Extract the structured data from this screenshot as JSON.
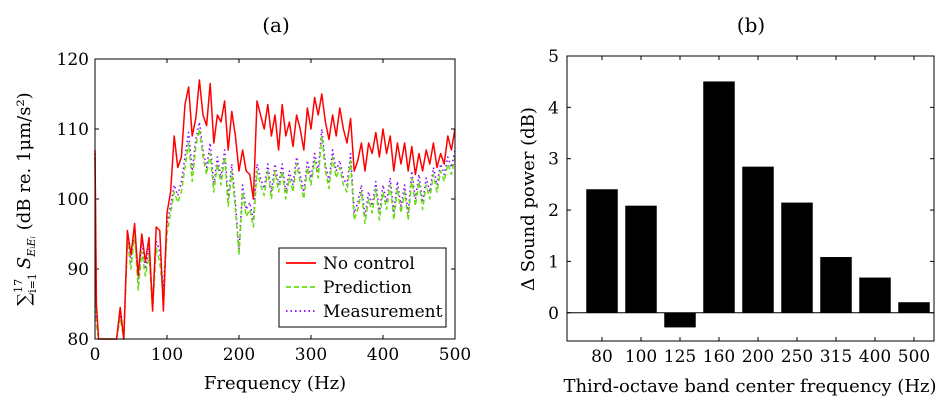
{
  "chart_data": [
    {
      "panel_label": "(a)",
      "type": "line",
      "xlabel": "Frequency (Hz)",
      "ylabel": "∑ S (dB re. 1μm/s²)",
      "ylabel_parts": {
        "sum": "∑",
        "sum_sup": "17",
        "sum_sub": "i=1",
        "symbol": "S",
        "symbol_sub": "EᵢEᵢ",
        "unit": "(dB re. 1μm/s²)"
      },
      "xlim": [
        0,
        500
      ],
      "ylim": [
        80,
        120
      ],
      "xticks": [
        0,
        100,
        200,
        300,
        400,
        500
      ],
      "yticks": [
        80,
        90,
        100,
        110,
        120
      ],
      "legend_position": "lower-right",
      "series": [
        {
          "name": "No control",
          "color": "#ff0000",
          "style": "solid",
          "x": [
            0,
            2,
            5,
            10,
            20,
            30,
            35,
            40,
            45,
            50,
            55,
            60,
            65,
            70,
            75,
            80,
            85,
            90,
            95,
            100,
            105,
            110,
            115,
            120,
            125,
            130,
            135,
            140,
            145,
            150,
            155,
            160,
            165,
            170,
            175,
            180,
            185,
            190,
            195,
            200,
            205,
            210,
            215,
            220,
            225,
            230,
            235,
            240,
            245,
            250,
            255,
            260,
            265,
            270,
            275,
            280,
            285,
            290,
            295,
            300,
            305,
            310,
            315,
            320,
            325,
            330,
            335,
            340,
            345,
            350,
            355,
            360,
            365,
            370,
            375,
            380,
            385,
            390,
            395,
            400,
            405,
            410,
            415,
            420,
            425,
            430,
            435,
            440,
            445,
            450,
            455,
            460,
            465,
            470,
            475,
            480,
            485,
            490,
            495,
            500
          ],
          "y": [
            107,
            85,
            80,
            80,
            80,
            80,
            84.5,
            80,
            95.5,
            92,
            96.5,
            89,
            95,
            91,
            94.5,
            84,
            96,
            95.5,
            84,
            98,
            101,
            109,
            104.5,
            106,
            113.5,
            116,
            109,
            111.5,
            117,
            112,
            110.5,
            116.5,
            108,
            112,
            111,
            114,
            107,
            112.5,
            109,
            104,
            107,
            104,
            103.5,
            100,
            114,
            112,
            110,
            113.5,
            109,
            112,
            107,
            113.5,
            109,
            111,
            107.5,
            112,
            110,
            107,
            113,
            110,
            114.5,
            112,
            115,
            111,
            108.5,
            112,
            109,
            113,
            110,
            108,
            111.5,
            104,
            105.5,
            108,
            104,
            108,
            106.5,
            109.5,
            106,
            110,
            106.5,
            109,
            104,
            108,
            105,
            108,
            104,
            107.5,
            103.5,
            106.5,
            104,
            107,
            105,
            108,
            104.5,
            106.5,
            105,
            109,
            107,
            110
          ]
        },
        {
          "name": "Prediction",
          "color": "#66dd11",
          "style": "dashed",
          "x": [
            0,
            2,
            5,
            10,
            20,
            30,
            35,
            40,
            45,
            50,
            55,
            60,
            65,
            70,
            75,
            80,
            85,
            90,
            95,
            100,
            105,
            110,
            115,
            120,
            125,
            130,
            135,
            140,
            145,
            150,
            155,
            160,
            165,
            170,
            175,
            180,
            185,
            190,
            195,
            200,
            205,
            210,
            215,
            220,
            225,
            230,
            235,
            240,
            245,
            250,
            255,
            260,
            265,
            270,
            275,
            280,
            285,
            290,
            295,
            300,
            305,
            310,
            315,
            320,
            325,
            330,
            335,
            340,
            345,
            350,
            355,
            360,
            365,
            370,
            375,
            380,
            385,
            390,
            395,
            400,
            405,
            410,
            415,
            420,
            425,
            430,
            435,
            440,
            445,
            450,
            455,
            460,
            465,
            470,
            475,
            480,
            485,
            490,
            495,
            500
          ],
          "y": [
            106,
            82,
            80,
            80,
            80,
            80,
            83,
            80,
            94,
            90,
            95,
            87,
            92.5,
            89,
            92,
            84,
            93,
            91,
            86,
            95,
            98,
            101,
            99.5,
            101,
            104.5,
            108,
            102.5,
            107.5,
            110,
            106,
            103.5,
            106.5,
            101,
            105,
            102,
            106,
            99,
            104,
            98.5,
            92,
            101,
            97.5,
            98.5,
            96,
            104,
            102,
            100.5,
            104,
            100,
            104,
            101,
            104,
            100,
            103,
            101,
            105,
            102.5,
            100,
            104.5,
            102,
            105.5,
            103,
            109,
            104,
            101.5,
            106,
            103,
            104.5,
            102,
            101,
            105.5,
            97,
            98.5,
            101,
            96.5,
            100,
            98,
            101.5,
            97,
            101,
            98.5,
            102,
            97,
            101.5,
            98,
            101,
            97,
            103,
            99,
            102.5,
            98.5,
            102,
            100,
            103.5,
            101,
            104,
            102.5,
            105,
            103.5,
            106
          ]
        },
        {
          "name": "Measurement",
          "color": "#8800ff",
          "style": "dotted",
          "x": [
            0,
            2,
            5,
            10,
            20,
            30,
            35,
            40,
            45,
            50,
            55,
            60,
            65,
            70,
            75,
            80,
            85,
            90,
            95,
            100,
            105,
            110,
            115,
            120,
            125,
            130,
            135,
            140,
            145,
            150,
            155,
            160,
            165,
            170,
            175,
            180,
            185,
            190,
            195,
            200,
            205,
            210,
            215,
            220,
            225,
            230,
            235,
            240,
            245,
            250,
            255,
            260,
            265,
            270,
            275,
            280,
            285,
            290,
            295,
            300,
            305,
            310,
            315,
            320,
            325,
            330,
            335,
            340,
            345,
            350,
            355,
            360,
            365,
            370,
            375,
            380,
            385,
            390,
            395,
            400,
            405,
            410,
            415,
            420,
            425,
            430,
            435,
            440,
            445,
            450,
            455,
            460,
            465,
            470,
            475,
            480,
            485,
            490,
            495,
            500
          ],
          "y": [
            106.5,
            83,
            80,
            80,
            80,
            80,
            83.5,
            80,
            94.5,
            91,
            95.5,
            88,
            94,
            90,
            93,
            85,
            94,
            92.5,
            87,
            96.5,
            99,
            102,
            100.5,
            102.5,
            106,
            109.5,
            104,
            108.5,
            111,
            107,
            104.5,
            108,
            102,
            106,
            103,
            107,
            100,
            105,
            99.5,
            92.5,
            102,
            98.5,
            99.5,
            97,
            105,
            103,
            101.5,
            105,
            101,
            105,
            102,
            105,
            101,
            104,
            102,
            106,
            103.5,
            101,
            105.5,
            103,
            106.5,
            104,
            110,
            105,
            102.5,
            107,
            104,
            105.5,
            103,
            102,
            106.5,
            98,
            99.5,
            102,
            97.5,
            101,
            99,
            102.5,
            98,
            102,
            99.5,
            103,
            98,
            102.5,
            99,
            102,
            98,
            104,
            100,
            103.5,
            99.5,
            103,
            101,
            104.5,
            102,
            105,
            103.5,
            106,
            104.5,
            107
          ]
        }
      ]
    },
    {
      "panel_label": "(b)",
      "type": "bar",
      "xlabel": "Third-octave band center frequency (Hz)",
      "ylabel": "Δ Sound power (dB)",
      "categories": [
        "80",
        "100",
        "125",
        "160",
        "200",
        "250",
        "315",
        "400",
        "500"
      ],
      "values": [
        2.4,
        2.08,
        -0.28,
        4.5,
        2.84,
        2.14,
        1.08,
        0.68,
        0.2
      ],
      "ylim": [
        -0.55,
        5
      ],
      "yticks": [
        0,
        1,
        2,
        3,
        4,
        5
      ],
      "bar_color": "#000000",
      "zero_line": true
    }
  ]
}
